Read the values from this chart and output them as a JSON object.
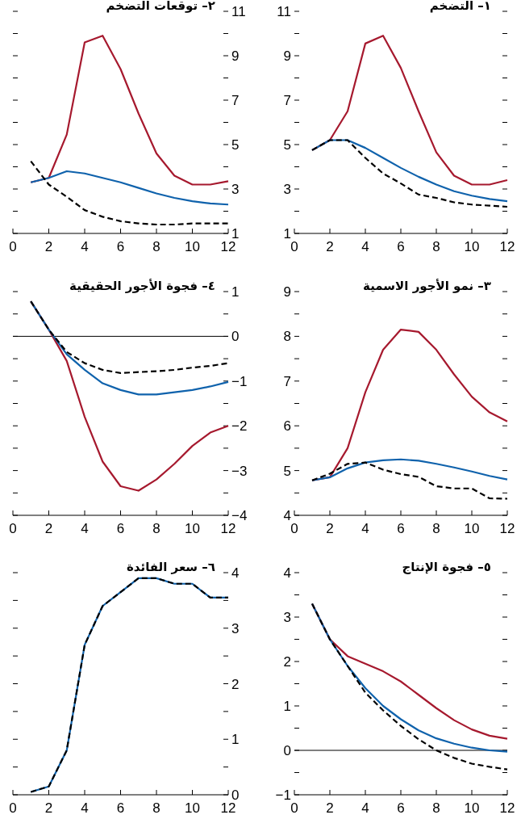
{
  "chart_data": [
    {
      "type": "line",
      "title": "١– التضخم",
      "x": [
        1,
        2,
        3,
        4,
        5,
        6,
        7,
        8,
        9,
        10,
        11,
        12
      ],
      "xlim": [
        0,
        12
      ],
      "xticks": [
        0,
        2,
        4,
        6,
        8,
        10,
        12
      ],
      "ylim": [
        1,
        11
      ],
      "yticks": [
        1,
        {
          "value": 2,
          "label": null
        },
        3,
        {
          "value": 4,
          "label": null
        },
        5,
        {
          "value": 6,
          "label": null
        },
        7,
        {
          "value": 8,
          "label": null
        },
        9,
        {
          "value": 10,
          "label": null
        },
        11
      ],
      "series": [
        {
          "color": "#a6192e",
          "values": [
            4.75,
            5.2,
            6.5,
            9.55,
            9.9,
            8.45,
            6.5,
            4.65,
            3.6,
            3.2,
            3.2,
            3.4
          ]
        },
        {
          "color": "#0f62ac",
          "values": [
            4.75,
            5.2,
            5.2,
            4.85,
            4.4,
            3.95,
            3.55,
            3.2,
            2.9,
            2.7,
            2.55,
            2.45
          ]
        },
        {
          "color": "#000000",
          "line_style": "dashed",
          "values": [
            4.75,
            5.2,
            5.2,
            4.4,
            3.7,
            3.25,
            2.75,
            2.6,
            2.4,
            2.3,
            2.25,
            2.2
          ]
        }
      ]
    },
    {
      "type": "line",
      "title": "٢– توقعات التضخم",
      "x": [
        1,
        2,
        3,
        4,
        5,
        6,
        7,
        8,
        9,
        10,
        11,
        12
      ],
      "xlim": [
        0,
        12
      ],
      "xticks": [
        0,
        2,
        4,
        6,
        8,
        10,
        12
      ],
      "ylim": [
        1,
        11
      ],
      "yticks": [
        1,
        {
          "value": 2,
          "label": null
        },
        3,
        {
          "value": 4,
          "label": null
        },
        5,
        {
          "value": 6,
          "label": null
        },
        7,
        {
          "value": 8,
          "label": null
        },
        9,
        {
          "value": 10,
          "label": null
        },
        11
      ],
      "series": [
        {
          "color": "#a6192e",
          "values": [
            3.3,
            3.5,
            5.45,
            9.6,
            9.9,
            8.4,
            6.4,
            4.6,
            3.6,
            3.2,
            3.2,
            3.35
          ]
        },
        {
          "color": "#0f62ac",
          "values": [
            3.3,
            3.5,
            3.8,
            3.7,
            3.5,
            3.3,
            3.05,
            2.8,
            2.6,
            2.45,
            2.35,
            2.3
          ]
        },
        {
          "color": "#000000",
          "line_style": "dashed",
          "values": [
            4.25,
            3.2,
            2.65,
            2.05,
            1.75,
            1.55,
            1.45,
            1.4,
            1.4,
            1.45,
            1.45,
            1.45
          ]
        }
      ]
    },
    {
      "type": "line",
      "title": "٣– نمو الأجور الاسمية",
      "x": [
        1,
        2,
        3,
        4,
        5,
        6,
        7,
        8,
        9,
        10,
        11,
        12
      ],
      "xlim": [
        0,
        12
      ],
      "xticks": [
        0,
        2,
        4,
        6,
        8,
        10,
        12
      ],
      "ylim": [
        4,
        9
      ],
      "yticks": [
        4,
        {
          "value": 4.5,
          "label": null
        },
        5,
        {
          "value": 5.5,
          "label": null
        },
        6,
        {
          "value": 6.5,
          "label": null
        },
        7,
        {
          "value": 7.5,
          "label": null
        },
        8,
        {
          "value": 8.5,
          "label": null
        },
        9
      ],
      "series": [
        {
          "color": "#a6192e",
          "values": [
            4.78,
            4.85,
            5.5,
            6.75,
            7.7,
            8.15,
            8.1,
            7.7,
            7.15,
            6.65,
            6.3,
            6.1
          ]
        },
        {
          "color": "#0f62ac",
          "values": [
            4.78,
            4.85,
            5.05,
            5.18,
            5.23,
            5.25,
            5.22,
            5.15,
            5.07,
            4.98,
            4.88,
            4.8
          ]
        },
        {
          "color": "#000000",
          "line_style": "dashed",
          "values": [
            4.78,
            4.93,
            5.15,
            5.18,
            5.02,
            4.92,
            4.86,
            4.65,
            4.6,
            4.6,
            4.38,
            4.37
          ]
        }
      ]
    },
    {
      "type": "line",
      "title": "٤– فجوة الأجور الحقيقية",
      "x": [
        1,
        2,
        3,
        4,
        5,
        6,
        7,
        8,
        9,
        10,
        11,
        12
      ],
      "xlim": [
        0,
        12
      ],
      "xticks": [
        0,
        2,
        4,
        6,
        8,
        10,
        12
      ],
      "ylim": [
        -4,
        1
      ],
      "yticks": [
        {
          "value": -4,
          "label": "−4"
        },
        {
          "value": -3.5,
          "label": null
        },
        {
          "value": -3,
          "label": "−3"
        },
        {
          "value": -2.5,
          "label": null
        },
        {
          "value": -2,
          "label": "−2"
        },
        {
          "value": -1.5,
          "label": null
        },
        {
          "value": -1,
          "label": "−1"
        },
        {
          "value": -0.5,
          "label": null
        },
        0,
        {
          "value": 0.5,
          "label": null
        },
        1
      ],
      "ref_lines": [
        {
          "axis": "y",
          "value": 0,
          "color": "#000000"
        }
      ],
      "series": [
        {
          "color": "#a6192e",
          "values": [
            0.78,
            0.15,
            -0.55,
            -1.8,
            -2.8,
            -3.35,
            -3.45,
            -3.2,
            -2.85,
            -2.45,
            -2.15,
            -2.0
          ]
        },
        {
          "color": "#0f62ac",
          "values": [
            0.78,
            0.15,
            -0.4,
            -0.75,
            -1.05,
            -1.2,
            -1.3,
            -1.3,
            -1.25,
            -1.2,
            -1.12,
            -1.02
          ]
        },
        {
          "color": "#000000",
          "line_style": "dashed",
          "values": [
            0.78,
            0.15,
            -0.35,
            -0.6,
            -0.75,
            -0.82,
            -0.8,
            -0.78,
            -0.75,
            -0.7,
            -0.66,
            -0.6
          ]
        }
      ]
    },
    {
      "type": "line",
      "title": "٥– فجوة الإنتاج",
      "x": [
        1,
        2,
        3,
        4,
        5,
        6,
        7,
        8,
        9,
        10,
        11,
        12
      ],
      "xlim": [
        0,
        12
      ],
      "xticks": [
        0,
        2,
        4,
        6,
        8,
        10,
        12
      ],
      "ylim": [
        -1,
        4
      ],
      "yticks": [
        {
          "value": -1,
          "label": "−1"
        },
        {
          "value": -0.5,
          "label": null
        },
        0,
        {
          "value": 0.5,
          "label": null
        },
        1,
        {
          "value": 1.5,
          "label": null
        },
        2,
        {
          "value": 2.5,
          "label": null
        },
        3,
        {
          "value": 3.5,
          "label": null
        },
        4
      ],
      "ref_lines": [
        {
          "axis": "y",
          "value": 0,
          "color": "#000000"
        }
      ],
      "series": [
        {
          "color": "#a6192e",
          "values": [
            3.3,
            2.5,
            2.12,
            1.95,
            1.78,
            1.55,
            1.25,
            0.95,
            0.68,
            0.47,
            0.33,
            0.26
          ]
        },
        {
          "color": "#0f62ac",
          "values": [
            3.3,
            2.5,
            1.9,
            1.4,
            1.0,
            0.7,
            0.45,
            0.27,
            0.15,
            0.06,
            0.0,
            -0.03
          ]
        },
        {
          "color": "#000000",
          "line_style": "dashed",
          "values": [
            3.3,
            2.5,
            1.9,
            1.3,
            0.9,
            0.55,
            0.25,
            0.0,
            -0.17,
            -0.3,
            -0.37,
            -0.43
          ]
        }
      ]
    },
    {
      "type": "line",
      "title": "٦– سعر الفائدة",
      "x": [
        1,
        2,
        3,
        4,
        5,
        6,
        7,
        8,
        9,
        10,
        11,
        12
      ],
      "xlim": [
        0,
        12
      ],
      "xticks": [
        0,
        2,
        4,
        6,
        8,
        10,
        12
      ],
      "ylim": [
        0,
        4
      ],
      "yticks": [
        0,
        {
          "value": 0.5,
          "label": null
        },
        1,
        {
          "value": 1.5,
          "label": null
        },
        2,
        {
          "value": 2.5,
          "label": null
        },
        3,
        {
          "value": 3.5,
          "label": null
        },
        4
      ],
      "series": [
        {
          "color": "#0f62ac",
          "values": [
            0.05,
            0.15,
            0.8,
            2.7,
            3.4,
            3.65,
            3.9,
            3.9,
            3.8,
            3.8,
            3.55,
            3.55
          ]
        },
        {
          "color": "#000000",
          "line_style": "dashed",
          "values": [
            0.05,
            0.15,
            0.8,
            2.7,
            3.4,
            3.65,
            3.9,
            3.9,
            3.8,
            3.8,
            3.55,
            3.55
          ]
        }
      ]
    }
  ]
}
